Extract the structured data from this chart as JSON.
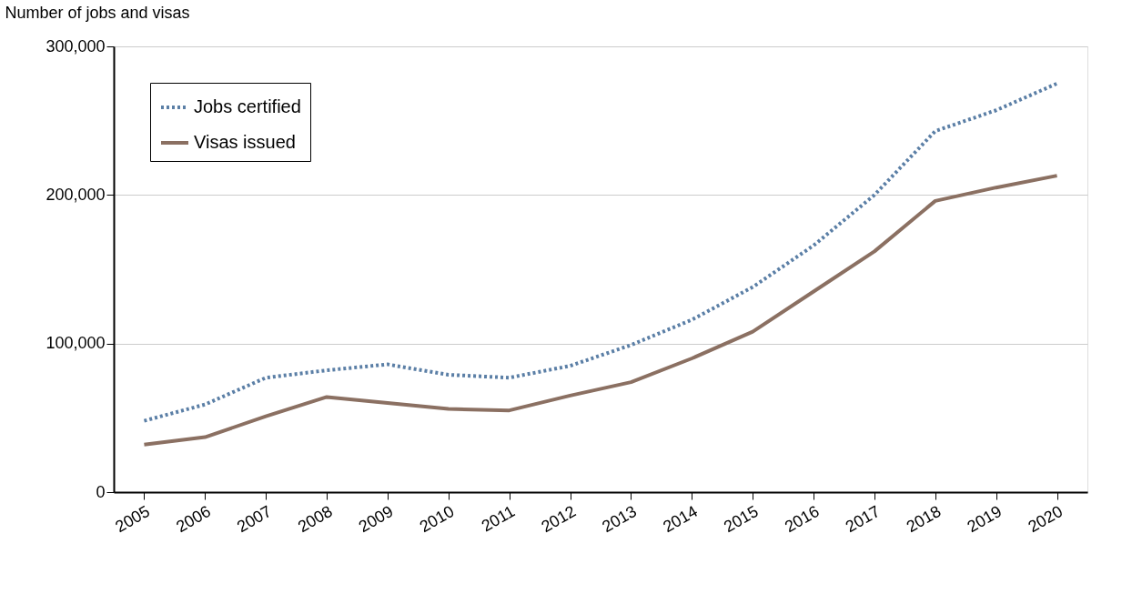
{
  "chart_data": {
    "type": "line",
    "ylabel": "Number of jobs and visas",
    "categories": [
      "2005",
      "2006",
      "2007",
      "2008",
      "2009",
      "2010",
      "2011",
      "2012",
      "2013",
      "2014",
      "2015",
      "2016",
      "2017",
      "2018",
      "2019",
      "2020"
    ],
    "series": [
      {
        "name": "Jobs certified",
        "color": "#5b7fa6",
        "line_style": "dotted",
        "values": [
          48000,
          59000,
          77000,
          82000,
          86000,
          79000,
          77000,
          85000,
          99000,
          116000,
          138000,
          166000,
          200000,
          243000,
          257000,
          275000
        ]
      },
      {
        "name": "Visas issued",
        "color": "#8b7062",
        "line_style": "solid",
        "values": [
          32000,
          37000,
          51000,
          64000,
          60000,
          56000,
          55000,
          65000,
          74000,
          90000,
          108000,
          135000,
          162000,
          196000,
          205000,
          213000
        ]
      }
    ],
    "ylim": [
      0,
      300000
    ],
    "yticks": [
      0,
      {
        "value": 100000,
        "label": "100,000"
      },
      {
        "value": 200000,
        "label": "200,000"
      },
      {
        "value": 300000,
        "label": "300,000"
      }
    ],
    "grid": "y",
    "legend": "top left",
    "marker": "none"
  }
}
